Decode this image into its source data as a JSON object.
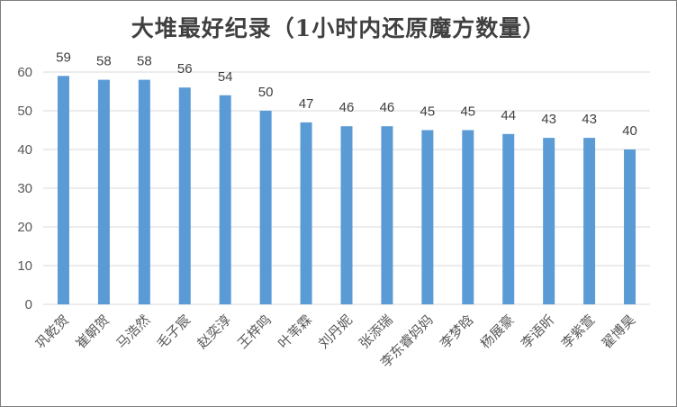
{
  "chart_data": {
    "type": "bar",
    "title": "大堆最好纪录（1小时内还原魔方数量）",
    "categories": [
      "巩乾贺",
      "崔朝贺",
      "马浩然",
      "毛子宸",
      "赵奕淳",
      "王梓鸣",
      "叶苇霖",
      "刘丹妮",
      "张添瑞",
      "李东睿妈妈",
      "李梦晗",
      "杨展豪",
      "李语昕",
      "李紫萱",
      "翟博昊"
    ],
    "values": [
      59,
      58,
      58,
      56,
      54,
      50,
      47,
      46,
      46,
      45,
      45,
      44,
      43,
      43,
      40
    ],
    "yticks": [
      0,
      10,
      20,
      30,
      40,
      50,
      60
    ],
    "ylim": [
      0,
      60
    ],
    "xlabel": "",
    "ylabel": "",
    "grid": true,
    "bar_color": "#5b9bd5",
    "grid_color": "#d9d9d9"
  }
}
